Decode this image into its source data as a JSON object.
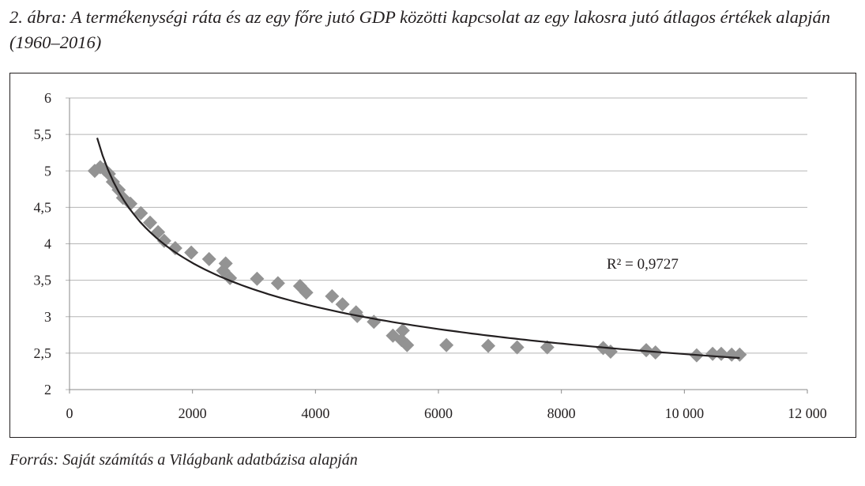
{
  "title": "2. ábra: A termékenységi ráta és az egy főre jutó GDP közötti kapcsolat az egy lakosra jutó átlagos értékek alapján (1960–2016)",
  "source": "Forrás: Saját számítás a Világbank adatbázisa alapján",
  "chart_data": {
    "type": "scatter",
    "title": "2. ábra: A termékenységi ráta és az egy főre jutó GDP közötti kapcsolat az egy lakosra jutó átlagos értékek alapján (1960–2016)",
    "xlabel": "",
    "ylabel": "",
    "xlim": [
      0,
      12000
    ],
    "ylim": [
      2,
      6
    ],
    "x_ticks": [
      0,
      2000,
      4000,
      6000,
      8000,
      10000,
      12000
    ],
    "x_tick_labels": [
      "0",
      "2000",
      "4000",
      "6000",
      "8000",
      "10 000",
      "12 000"
    ],
    "y_ticks": [
      2,
      2.5,
      3,
      3.5,
      4,
      4.5,
      5,
      5.5,
      6
    ],
    "y_tick_labels": [
      "2",
      "2,5",
      "3",
      "3,5",
      "4",
      "4,5",
      "5",
      "5,5",
      "6"
    ],
    "grid": "horizontal",
    "marker_color": "#939393",
    "trendline_color": "#231f20",
    "trendline": {
      "type": "power",
      "annotation": "R² = 0,9727"
    },
    "points": [
      [
        410,
        5.0
      ],
      [
        500,
        5.05
      ],
      [
        565,
        5.02
      ],
      [
        640,
        4.96
      ],
      [
        705,
        4.85
      ],
      [
        800,
        4.74
      ],
      [
        870,
        4.63
      ],
      [
        990,
        4.55
      ],
      [
        1160,
        4.42
      ],
      [
        1310,
        4.29
      ],
      [
        1440,
        4.16
      ],
      [
        1540,
        4.04
      ],
      [
        1720,
        3.94
      ],
      [
        1980,
        3.88
      ],
      [
        2270,
        3.79
      ],
      [
        2540,
        3.73
      ],
      [
        2500,
        3.63
      ],
      [
        2610,
        3.53
      ],
      [
        3050,
        3.52
      ],
      [
        3390,
        3.46
      ],
      [
        3750,
        3.42
      ],
      [
        3850,
        3.33
      ],
      [
        4270,
        3.28
      ],
      [
        4440,
        3.17
      ],
      [
        4660,
        3.06
      ],
      [
        4680,
        3.01
      ],
      [
        4950,
        2.93
      ],
      [
        5260,
        2.74
      ],
      [
        5420,
        2.81
      ],
      [
        5400,
        2.68
      ],
      [
        5490,
        2.61
      ],
      [
        6130,
        2.61
      ],
      [
        6810,
        2.6
      ],
      [
        7280,
        2.58
      ],
      [
        7770,
        2.58
      ],
      [
        8680,
        2.57
      ],
      [
        8800,
        2.52
      ],
      [
        9380,
        2.54
      ],
      [
        9530,
        2.51
      ],
      [
        10200,
        2.47
      ],
      [
        10460,
        2.49
      ],
      [
        10600,
        2.49
      ],
      [
        10770,
        2.48
      ],
      [
        10900,
        2.48
      ]
    ]
  }
}
